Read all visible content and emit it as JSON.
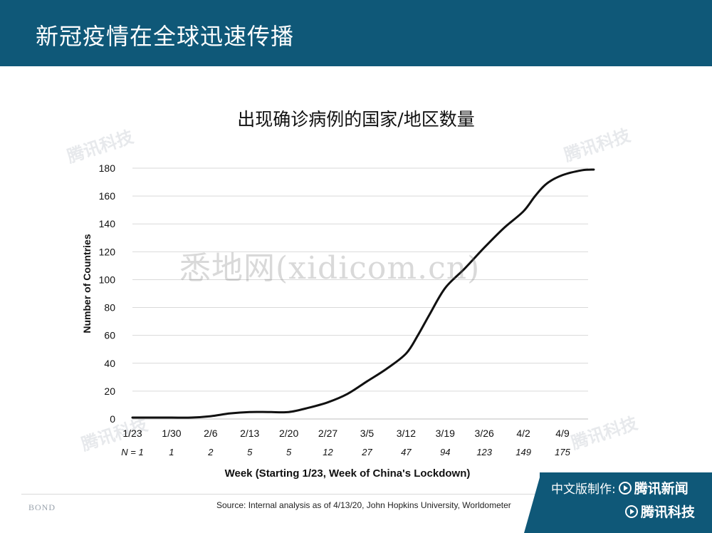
{
  "header": {
    "title": "新冠疫情在全球迅速传播"
  },
  "colors": {
    "header_bg": "#0f5878",
    "line": "#111111",
    "grid": "#d9d9d9"
  },
  "chart_data": {
    "type": "line",
    "title": "出现确诊病例的国家/地区数量",
    "xlabel": "Week (Starting 1/23, Week of China's Lockdown)",
    "ylabel": "Number of Countries",
    "ylim": [
      0,
      180
    ],
    "yticks": [
      0,
      20,
      40,
      60,
      80,
      100,
      120,
      140,
      160,
      180
    ],
    "grid": "horizontal",
    "x_tick_labels": [
      "1/23",
      "1/30",
      "2/6",
      "2/13",
      "2/20",
      "2/27",
      "3/5",
      "3/12",
      "3/19",
      "3/26",
      "4/2",
      "4/9"
    ],
    "n_labels": [
      "N = 1",
      "1",
      "2",
      "5",
      "5",
      "12",
      "27",
      "47",
      "94",
      "123",
      "149",
      "175"
    ],
    "series": [
      {
        "x": [
          0,
          0.5,
          1,
          1.5,
          2,
          2.5,
          3,
          3.5,
          4,
          4.5,
          5,
          5.5,
          6,
          6.5,
          7,
          7.3,
          7.6,
          8,
          8.5,
          9,
          9.5,
          10,
          10.3,
          10.6,
          11,
          11.5,
          11.8
        ],
        "values": [
          1,
          1,
          1,
          1,
          2,
          4,
          5,
          5,
          5,
          8,
          12,
          18,
          27,
          36,
          47,
          60,
          75,
          94,
          108,
          123,
          137,
          149,
          160,
          169,
          175,
          178.5,
          179
        ]
      }
    ]
  },
  "source": "Source: Internal analysis as of 4/13/20, John Hopkins University, Worldometer",
  "footer": {
    "bond": "BOND",
    "made_by": "中文版制作:",
    "brand1": "腾讯新闻",
    "brand2": "腾讯科技"
  },
  "watermarks": {
    "tencent": "腾讯科技",
    "site": "悉地网(xidicom.cn)"
  }
}
